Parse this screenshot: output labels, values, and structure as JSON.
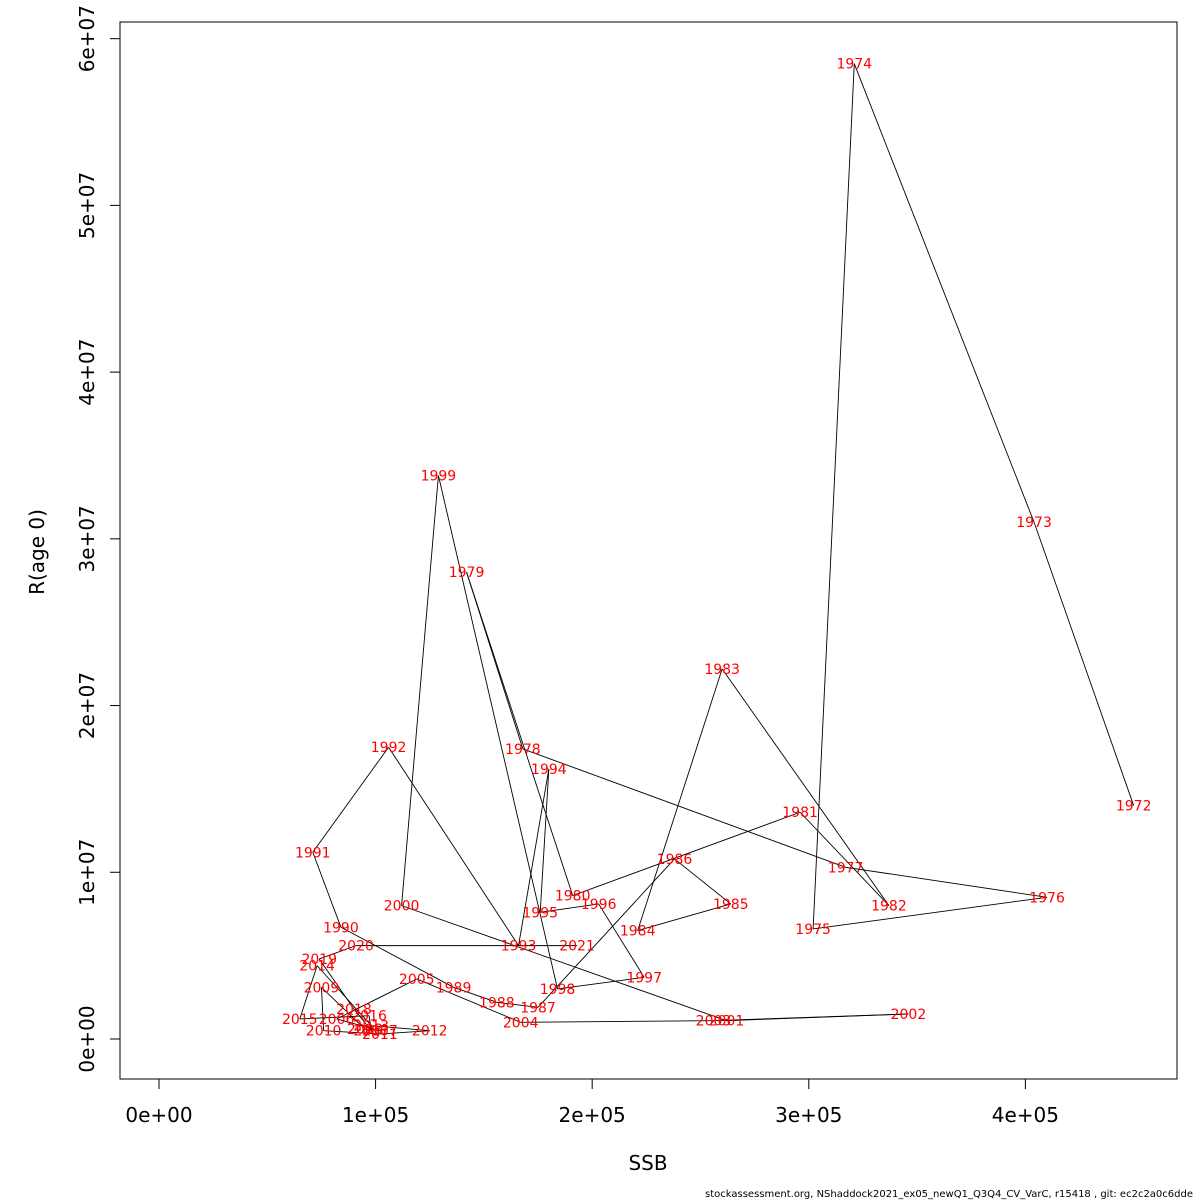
{
  "chart_data": {
    "type": "line",
    "title": "",
    "xlabel": "SSB",
    "ylabel": "R(age 0)",
    "xlim": [
      -18000,
      470000
    ],
    "ylim": [
      -2400000,
      61000000
    ],
    "x_ticks": [
      {
        "value": 0,
        "label": "0e+00"
      },
      {
        "value": 100000,
        "label": "1e+05"
      },
      {
        "value": 200000,
        "label": "2e+05"
      },
      {
        "value": 300000,
        "label": "3e+05"
      },
      {
        "value": 400000,
        "label": "4e+05"
      }
    ],
    "y_ticks": [
      {
        "value": 0,
        "label": "0e+00"
      },
      {
        "value": 10000000,
        "label": "1e+07"
      },
      {
        "value": 20000000,
        "label": "2e+07"
      },
      {
        "value": 30000000,
        "label": "3e+07"
      },
      {
        "value": 40000000,
        "label": "4e+07"
      },
      {
        "value": 50000000,
        "label": "5e+07"
      },
      {
        "value": 60000000,
        "label": "6e+07"
      }
    ],
    "grid": false,
    "line_color": "#000000",
    "label_color": "#ff0000",
    "series": [
      {
        "points": [
          {
            "year": "1972",
            "x": 450000,
            "y": 14000000
          },
          {
            "year": "1973",
            "x": 404000,
            "y": 31000000
          },
          {
            "year": "1974",
            "x": 321000,
            "y": 58500000
          },
          {
            "year": "1975",
            "x": 302000,
            "y": 6600000
          },
          {
            "year": "1976",
            "x": 410000,
            "y": 8500000
          },
          {
            "year": "1977",
            "x": 317000,
            "y": 10300000
          },
          {
            "year": "1978",
            "x": 168000,
            "y": 17400000
          },
          {
            "year": "1979",
            "x": 142000,
            "y": 28000000
          },
          {
            "year": "1980",
            "x": 191000,
            "y": 8600000
          },
          {
            "year": "1981",
            "x": 296000,
            "y": 13600000
          },
          {
            "year": "1982",
            "x": 337000,
            "y": 8000000
          },
          {
            "year": "1983",
            "x": 260000,
            "y": 22200000
          },
          {
            "year": "1984",
            "x": 221000,
            "y": 6500000
          },
          {
            "year": "1985",
            "x": 264000,
            "y": 8100000
          },
          {
            "year": "1986",
            "x": 238000,
            "y": 10800000
          },
          {
            "year": "1987",
            "x": 175000,
            "y": 1900000
          },
          {
            "year": "1988",
            "x": 156000,
            "y": 2200000
          },
          {
            "year": "1989",
            "x": 136000,
            "y": 3100000
          },
          {
            "year": "1990",
            "x": 84000,
            "y": 6700000
          },
          {
            "year": "1991",
            "x": 71000,
            "y": 11200000
          },
          {
            "year": "1992",
            "x": 106000,
            "y": 17500000
          },
          {
            "year": "1993",
            "x": 166000,
            "y": 5600000
          },
          {
            "year": "1994",
            "x": 180000,
            "y": 16200000
          },
          {
            "year": "1995",
            "x": 176000,
            "y": 7600000
          },
          {
            "year": "1996",
            "x": 203000,
            "y": 8100000
          },
          {
            "year": "1997",
            "x": 224000,
            "y": 3700000
          },
          {
            "year": "1998",
            "x": 184000,
            "y": 3000000
          },
          {
            "year": "1999",
            "x": 129000,
            "y": 33800000
          },
          {
            "year": "2000",
            "x": 112000,
            "y": 8000000
          },
          {
            "year": "2001",
            "x": 262000,
            "y": 1100000
          },
          {
            "year": "2002",
            "x": 346000,
            "y": 1500000
          },
          {
            "year": "2003",
            "x": 256000,
            "y": 1100000
          },
          {
            "year": "2004",
            "x": 167000,
            "y": 1000000
          },
          {
            "year": "2005",
            "x": 119000,
            "y": 3600000
          },
          {
            "year": "2006",
            "x": 82000,
            "y": 1200000
          },
          {
            "year": "2007",
            "x": 102000,
            "y": 500000
          },
          {
            "year": "2008",
            "x": 95000,
            "y": 600000
          },
          {
            "year": "2009",
            "x": 75000,
            "y": 3100000
          },
          {
            "year": "2010",
            "x": 76000,
            "y": 500000
          },
          {
            "year": "2011",
            "x": 102000,
            "y": 300000
          },
          {
            "year": "2012",
            "x": 125000,
            "y": 500000
          },
          {
            "year": "2013",
            "x": 98000,
            "y": 800000
          },
          {
            "year": "2014",
            "x": 73000,
            "y": 4400000
          },
          {
            "year": "2015",
            "x": 65000,
            "y": 1200000
          },
          {
            "year": "2016",
            "x": 97000,
            "y": 1400000
          },
          {
            "year": "2017",
            "x": 98000,
            "y": 500000
          },
          {
            "year": "2018",
            "x": 90000,
            "y": 1800000
          },
          {
            "year": "2019",
            "x": 74000,
            "y": 4800000
          },
          {
            "year": "2020",
            "x": 91000,
            "y": 5600000
          },
          {
            "year": "2021",
            "x": 193000,
            "y": 5600000
          }
        ]
      }
    ],
    "footer": "stockassessment.org, NShaddock2021_ex05_newQ1_Q3Q4_CV_VarC, r15418 , git: ec2c2a0c6dde"
  }
}
